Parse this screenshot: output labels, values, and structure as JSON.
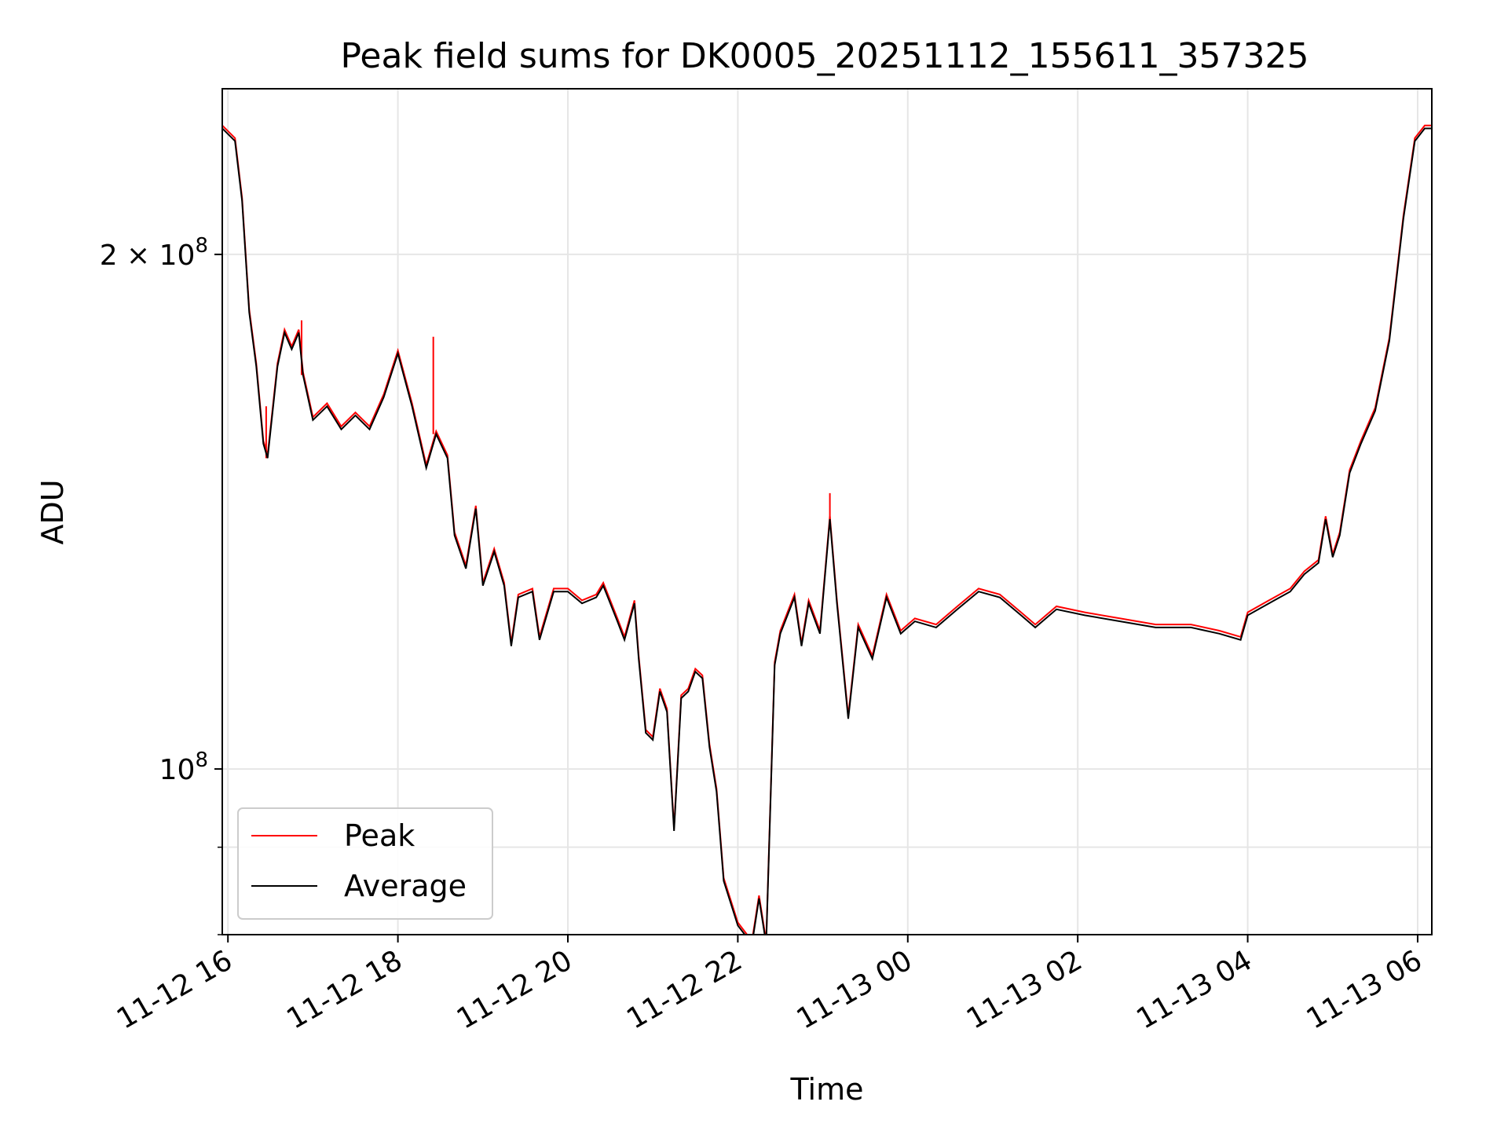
{
  "chart_data": {
    "type": "line",
    "title": "Peak field sums for DK0005_20251112_155611_357325",
    "xlabel": "Time",
    "ylabel": "ADU",
    "yscale": "log",
    "ylim": [
      80000000,
      250000000
    ],
    "xlim": [
      "2025-11-12 15:56",
      "2025-11-13 06:10"
    ],
    "grid": true,
    "legend_position": "lower-left",
    "x_ticks": [
      {
        "t": "2025-11-12 16:00",
        "label": "11-12 16"
      },
      {
        "t": "2025-11-12 18:00",
        "label": "11-12 18"
      },
      {
        "t": "2025-11-12 20:00",
        "label": "11-12 20"
      },
      {
        "t": "2025-11-12 22:00",
        "label": "11-12 22"
      },
      {
        "t": "2025-11-13 00:00",
        "label": "11-13 00"
      },
      {
        "t": "2025-11-13 02:00",
        "label": "11-13 02"
      },
      {
        "t": "2025-11-13 04:00",
        "label": "11-13 04"
      },
      {
        "t": "2025-11-13 06:00",
        "label": "11-13 06"
      }
    ],
    "y_ticks_major": [
      {
        "v": 100000000,
        "base": "10",
        "exp": "8",
        "mantissa": ""
      },
      {
        "v": 200000000,
        "base": "10",
        "exp": "8",
        "mantissa": "2 × "
      }
    ],
    "y_ticks_minor": [
      80000000,
      90000000
    ],
    "series": [
      {
        "name": "Peak",
        "color": "#ff0000",
        "spikes": [
          {
            "t": "2025-11-12 16:52",
            "v": 183000000
          },
          {
            "t": "2025-11-12 18:25",
            "v": 179000000
          },
          {
            "t": "2025-11-12 23:05",
            "v": 145000000
          },
          {
            "t": "2025-11-12 16:27",
            "v": 163000000
          }
        ]
      },
      {
        "name": "Average",
        "color": "#000000",
        "points": [
          [
            "2025-11-12 15:56",
            237000000
          ],
          [
            "2025-11-12 16:05",
            233000000
          ],
          [
            "2025-11-12 16:10",
            215000000
          ],
          [
            "2025-11-12 16:15",
            185000000
          ],
          [
            "2025-11-12 16:20",
            172000000
          ],
          [
            "2025-11-12 16:25",
            155000000
          ],
          [
            "2025-11-12 16:28",
            152000000
          ],
          [
            "2025-11-12 16:35",
            172000000
          ],
          [
            "2025-11-12 16:40",
            180000000
          ],
          [
            "2025-11-12 16:45",
            176000000
          ],
          [
            "2025-11-12 16:50",
            180000000
          ],
          [
            "2025-11-12 16:53",
            170000000
          ],
          [
            "2025-11-12 17:00",
            160000000
          ],
          [
            "2025-11-12 17:10",
            163000000
          ],
          [
            "2025-11-12 17:20",
            158000000
          ],
          [
            "2025-11-12 17:30",
            161000000
          ],
          [
            "2025-11-12 17:40",
            158000000
          ],
          [
            "2025-11-12 17:50",
            165000000
          ],
          [
            "2025-11-12 18:00",
            175000000
          ],
          [
            "2025-11-12 18:10",
            163000000
          ],
          [
            "2025-11-12 18:20",
            150000000
          ],
          [
            "2025-11-12 18:27",
            157000000
          ],
          [
            "2025-11-12 18:35",
            152000000
          ],
          [
            "2025-11-12 18:40",
            137000000
          ],
          [
            "2025-11-12 18:48",
            131000000
          ],
          [
            "2025-11-12 18:55",
            142000000
          ],
          [
            "2025-11-12 19:00",
            128000000
          ],
          [
            "2025-11-12 19:08",
            134000000
          ],
          [
            "2025-11-12 19:15",
            128000000
          ],
          [
            "2025-11-12 19:20",
            118000000
          ],
          [
            "2025-11-12 19:25",
            126000000
          ],
          [
            "2025-11-12 19:35",
            127000000
          ],
          [
            "2025-11-12 19:40",
            119000000
          ],
          [
            "2025-11-12 19:50",
            127000000
          ],
          [
            "2025-11-12 20:00",
            127000000
          ],
          [
            "2025-11-12 20:10",
            125000000
          ],
          [
            "2025-11-12 20:20",
            126000000
          ],
          [
            "2025-11-12 20:25",
            128000000
          ],
          [
            "2025-11-12 20:35",
            122000000
          ],
          [
            "2025-11-12 20:40",
            119000000
          ],
          [
            "2025-11-12 20:47",
            125000000
          ],
          [
            "2025-11-12 20:50",
            116000000
          ],
          [
            "2025-11-12 20:55",
            105000000
          ],
          [
            "2025-11-12 21:00",
            104000000
          ],
          [
            "2025-11-12 21:05",
            111000000
          ],
          [
            "2025-11-12 21:10",
            108000000
          ],
          [
            "2025-11-12 21:15",
            92000000
          ],
          [
            "2025-11-12 21:20",
            110000000
          ],
          [
            "2025-11-12 21:25",
            111000000
          ],
          [
            "2025-11-12 21:30",
            114000000
          ],
          [
            "2025-11-12 21:35",
            113000000
          ],
          [
            "2025-11-12 21:40",
            103000000
          ],
          [
            "2025-11-12 21:45",
            97000000
          ],
          [
            "2025-11-12 21:50",
            86000000
          ],
          [
            "2025-11-12 22:00",
            81000000
          ],
          [
            "2025-11-12 22:10",
            79000000
          ],
          [
            "2025-11-12 22:15",
            84000000
          ],
          [
            "2025-11-12 22:20",
            79000000
          ],
          [
            "2025-11-12 22:26",
            115000000
          ],
          [
            "2025-11-12 22:30",
            120000000
          ],
          [
            "2025-11-12 22:40",
            126000000
          ],
          [
            "2025-11-12 22:45",
            118000000
          ],
          [
            "2025-11-12 22:50",
            125000000
          ],
          [
            "2025-11-12 22:58",
            120000000
          ],
          [
            "2025-11-12 23:05",
            140000000
          ],
          [
            "2025-11-12 23:10",
            125000000
          ],
          [
            "2025-11-12 23:18",
            107000000
          ],
          [
            "2025-11-12 23:25",
            121000000
          ],
          [
            "2025-11-12 23:35",
            116000000
          ],
          [
            "2025-11-12 23:45",
            126000000
          ],
          [
            "2025-11-12 23:55",
            120000000
          ],
          [
            "2025-11-13 00:05",
            122000000
          ],
          [
            "2025-11-13 00:20",
            121000000
          ],
          [
            "2025-11-13 00:35",
            124000000
          ],
          [
            "2025-11-13 00:50",
            127000000
          ],
          [
            "2025-11-13 01:05",
            126000000
          ],
          [
            "2025-11-13 01:20",
            123000000
          ],
          [
            "2025-11-13 01:30",
            121000000
          ],
          [
            "2025-11-13 01:45",
            124000000
          ],
          [
            "2025-11-13 02:05",
            123000000
          ],
          [
            "2025-11-13 02:30",
            122000000
          ],
          [
            "2025-11-13 02:55",
            121000000
          ],
          [
            "2025-11-13 03:20",
            121000000
          ],
          [
            "2025-11-13 03:40",
            120000000
          ],
          [
            "2025-11-13 03:55",
            119000000
          ],
          [
            "2025-11-13 04:00",
            123000000
          ],
          [
            "2025-11-13 04:15",
            125000000
          ],
          [
            "2025-11-13 04:30",
            127000000
          ],
          [
            "2025-11-13 04:40",
            130000000
          ],
          [
            "2025-11-13 04:50",
            132000000
          ],
          [
            "2025-11-13 04:55",
            140000000
          ],
          [
            "2025-11-13 05:00",
            133000000
          ],
          [
            "2025-11-13 05:05",
            137000000
          ],
          [
            "2025-11-13 05:12",
            149000000
          ],
          [
            "2025-11-13 05:20",
            155000000
          ],
          [
            "2025-11-13 05:30",
            162000000
          ],
          [
            "2025-11-13 05:40",
            178000000
          ],
          [
            "2025-11-13 05:50",
            210000000
          ],
          [
            "2025-11-13 05:58",
            233000000
          ],
          [
            "2025-11-13 06:05",
            237000000
          ],
          [
            "2025-11-13 06:10",
            237000000
          ]
        ]
      }
    ]
  }
}
